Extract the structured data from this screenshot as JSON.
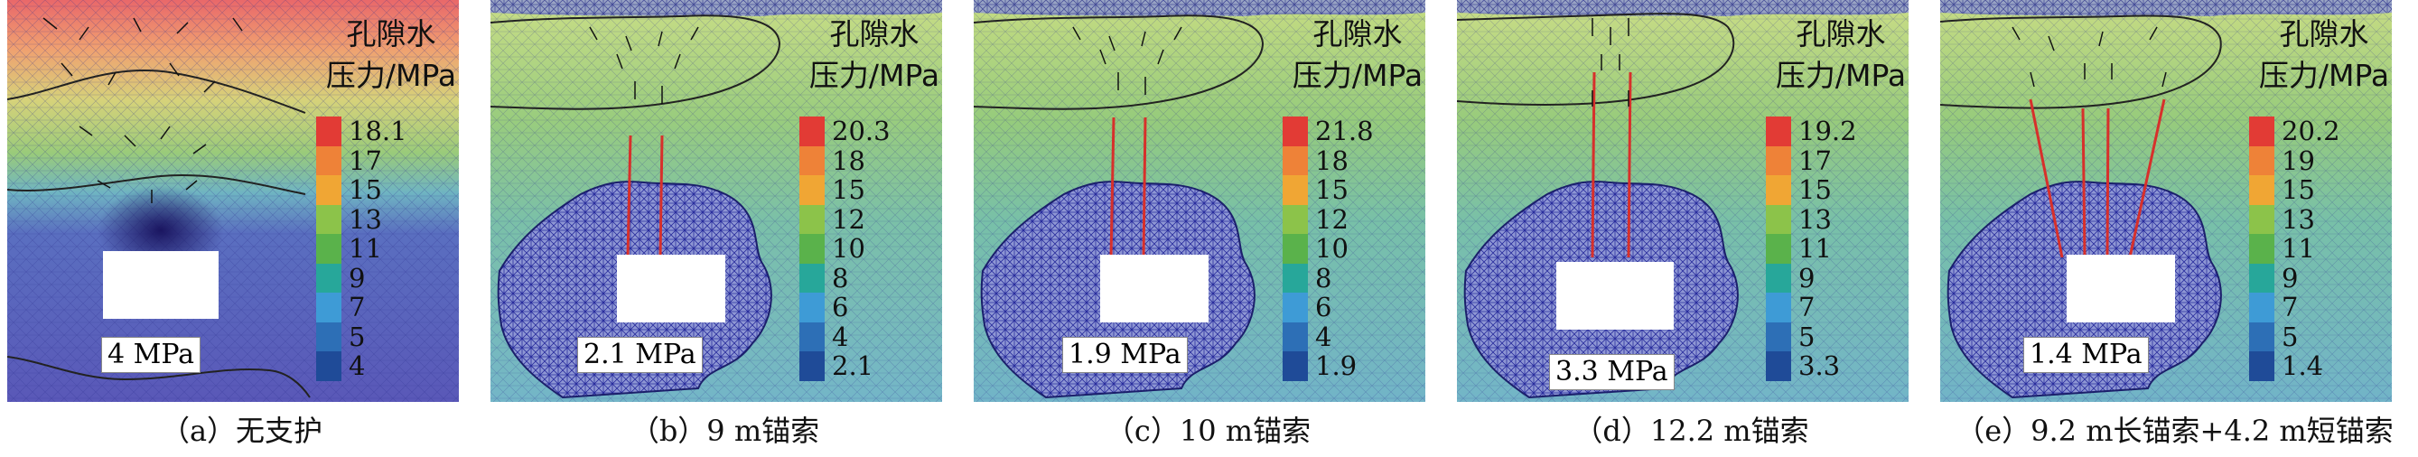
{
  "legend_title_line1": "孔隙水",
  "legend_title_line2": "压力/MPa",
  "colorbar_colors": [
    "#e23b35",
    "#ee8238",
    "#f0a634",
    "#8cc34a",
    "#5ab24b",
    "#27a79a",
    "#3e9bd6",
    "#2d6fb6",
    "#1f4b98"
  ],
  "panels": [
    {
      "caption": "（a）无支护",
      "pressure_label": "4 MPa",
      "ticks": [
        "18.1",
        "17",
        "15",
        "13",
        "11",
        "9",
        "7",
        "5",
        "4"
      ]
    },
    {
      "caption": "（b）9 m锚索",
      "pressure_label": "2.1 MPa",
      "ticks": [
        "20.3",
        "18",
        "15",
        "12",
        "10",
        "8",
        "6",
        "4",
        "2.1"
      ]
    },
    {
      "caption": "（c）10 m锚索",
      "pressure_label": "1.9 MPa",
      "ticks": [
        "21.8",
        "18",
        "15",
        "12",
        "10",
        "8",
        "6",
        "4",
        "1.9"
      ]
    },
    {
      "caption": "（d）12.2 m锚索",
      "pressure_label": "3.3 MPa",
      "ticks": [
        "19.2",
        "17",
        "15",
        "13",
        "11",
        "9",
        "7",
        "5",
        "3.3"
      ]
    },
    {
      "caption": "（e）9.2 m长锚索+4.2 m短锚索",
      "pressure_label": "1.4 MPa",
      "ticks": [
        "20.2",
        "19",
        "15",
        "13",
        "11",
        "9",
        "7",
        "5",
        "1.4"
      ]
    }
  ]
}
